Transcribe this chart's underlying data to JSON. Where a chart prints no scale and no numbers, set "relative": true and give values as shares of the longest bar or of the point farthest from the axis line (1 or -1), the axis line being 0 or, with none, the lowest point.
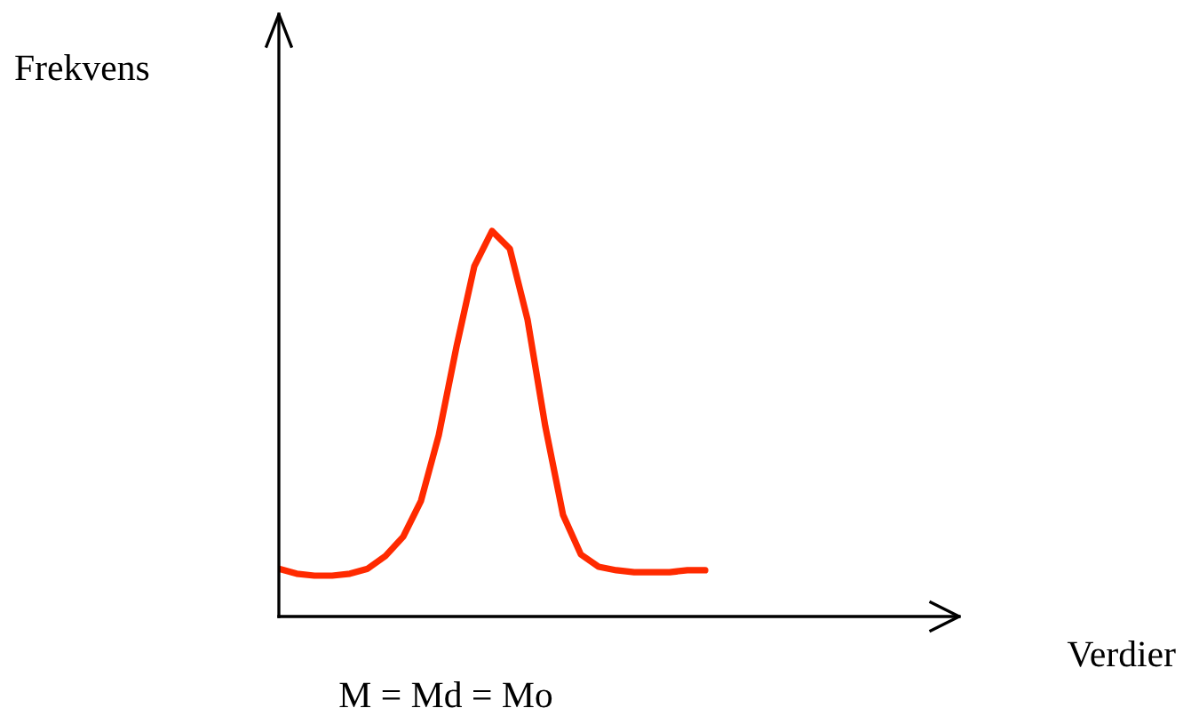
{
  "chart_data": {
    "type": "line",
    "relative": true,
    "annotations": [
      "Frekvens",
      "Verdier",
      "M = Md = Mo"
    ],
    "categories": [
      null,
      null,
      null,
      null,
      null,
      null,
      null,
      null,
      null,
      null,
      null,
      null,
      null,
      null,
      null,
      null,
      null,
      null,
      null,
      null,
      null,
      null,
      null,
      null,
      null
    ],
    "series": [
      {
        "color": "#ff2a00",
        "values": [
          0.124,
          0.111,
          0.106,
          0.106,
          0.111,
          0.124,
          0.157,
          0.207,
          0.3,
          0.47,
          0.7,
          0.908,
          1,
          0.954,
          0.77,
          0.493,
          0.263,
          0.161,
          0.129,
          0.12,
          0.115,
          0.115,
          0.115,
          0.12,
          0.12
        ]
      }
    ],
    "grid": false,
    "marker": "none",
    "line_style": "solid"
  }
}
